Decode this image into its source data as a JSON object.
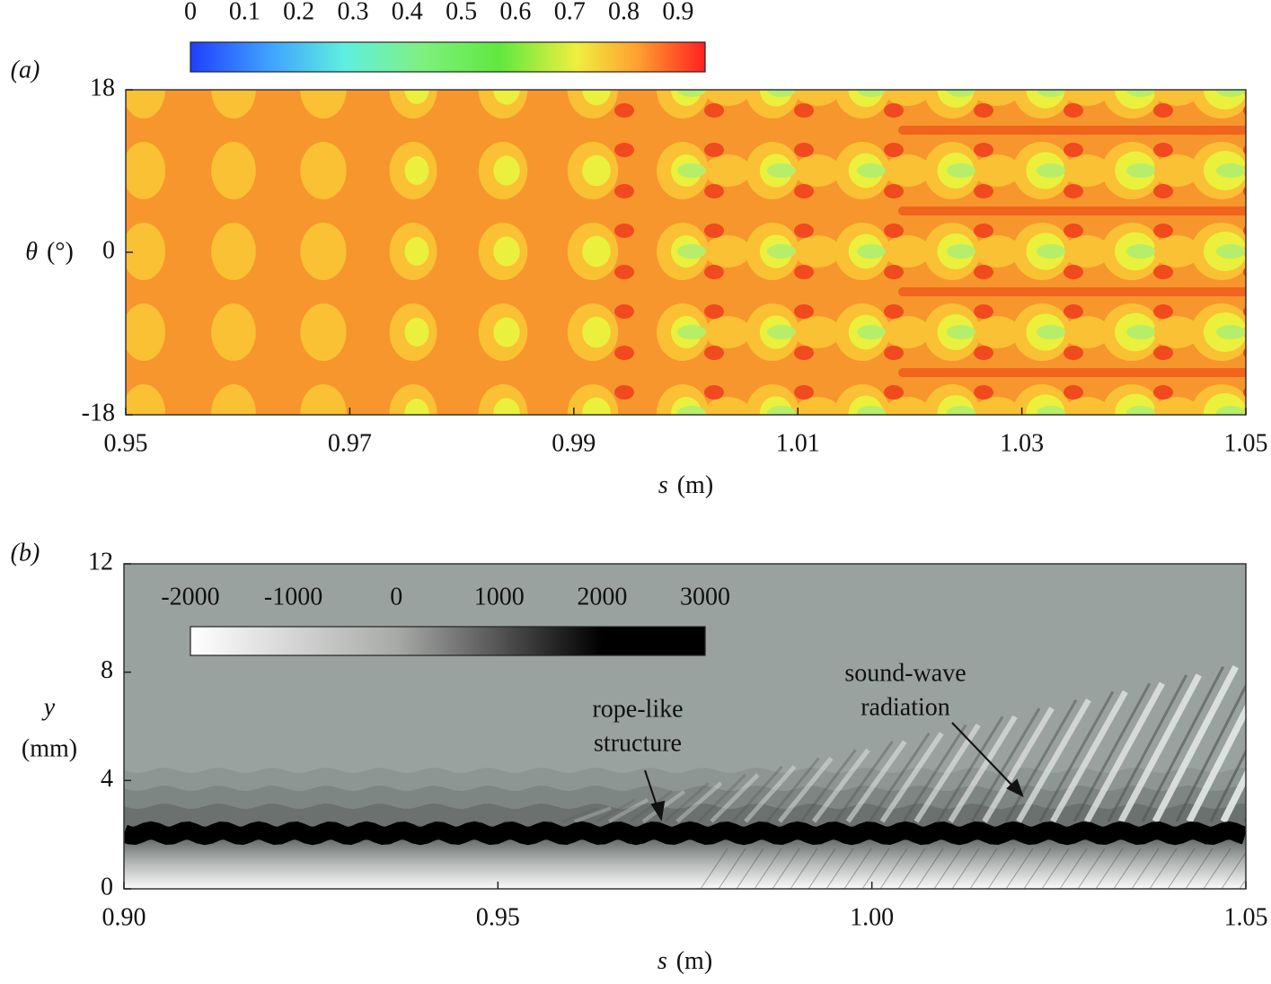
{
  "chart_data": [
    {
      "type": "contour",
      "panel": "(a)",
      "xlabel": {
        "symbol": "s",
        "unit": "(m)"
      },
      "ylabel": {
        "symbol": "θ",
        "unit": "(°)"
      },
      "xlim": [
        0.95,
        1.05
      ],
      "xticks": [
        0.95,
        0.97,
        0.99,
        1.01,
        1.03,
        1.05
      ],
      "ylim": [
        -18,
        18
      ],
      "yticks": [
        -18,
        0,
        18
      ],
      "colormap": "jet",
      "clim": [
        0,
        0.95
      ],
      "cticks": [
        0,
        0.1,
        0.2,
        0.3,
        0.4,
        0.5,
        0.6,
        0.7,
        0.8,
        0.9
      ]
    },
    {
      "type": "contour",
      "panel": "(b)",
      "xlabel": {
        "symbol": "s",
        "unit": "(m)"
      },
      "ylabel": {
        "symbol": "y",
        "unit": "(mm)"
      },
      "xlim": [
        0.9,
        1.05
      ],
      "xticks": [
        {
          "value": 0.9,
          "label": "0.90"
        },
        0.95,
        {
          "value": 1,
          "label": "1.00"
        },
        1.05
      ],
      "ylim": [
        0,
        12
      ],
      "yticks": [
        0,
        4,
        8,
        12
      ],
      "colormap": "gray",
      "clim": [
        -2000,
        3000
      ],
      "cticks": [
        -2000,
        -1000,
        0,
        1000,
        2000,
        3000
      ],
      "annotations": [
        {
          "lines": [
            "rope-like",
            "structure"
          ]
        },
        {
          "lines": [
            "sound-wave",
            "radiation"
          ]
        }
      ]
    }
  ]
}
